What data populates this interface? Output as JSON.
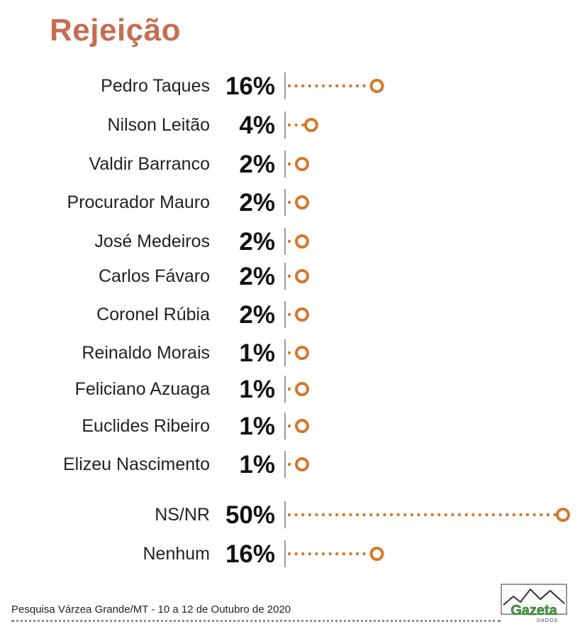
{
  "colors": {
    "title": "#c66d52",
    "accent": "#d4782a",
    "axis": "#9a9a9a",
    "text": "#222222"
  },
  "chart_data": {
    "type": "dot-bar",
    "title": "Rejeição",
    "unit": "%",
    "categories": [
      "Pedro Taques",
      "Nilson Leitão",
      "Valdir Barranco",
      "Procurador Mauro",
      "José Medeiros",
      "Carlos Fávaro",
      "Coronel Rúbia",
      "Reinaldo Morais",
      "Feliciano Azuaga",
      "Euclides Ribeiro",
      "Elizeu Nascimento",
      "NS/NR",
      "Nenhum"
    ],
    "values": [
      16,
      4,
      2,
      2,
      2,
      2,
      2,
      1,
      1,
      1,
      1,
      50,
      16
    ],
    "value_labels": [
      "16%",
      "4%",
      "2%",
      "2%",
      "2%",
      "2%",
      "2%",
      "1%",
      "1%",
      "1%",
      "1%",
      "50%",
      "16%"
    ],
    "xlim": [
      0,
      50
    ],
    "grid": false,
    "legend": "none"
  },
  "footer": {
    "source": "Pesquisa Várzea Grande/MT  - 10 a 12 de Outubro de 2020"
  },
  "logo": {
    "name": "Gazeta",
    "sub": "DADOS",
    "icon": "line-chart-logo-icon"
  }
}
